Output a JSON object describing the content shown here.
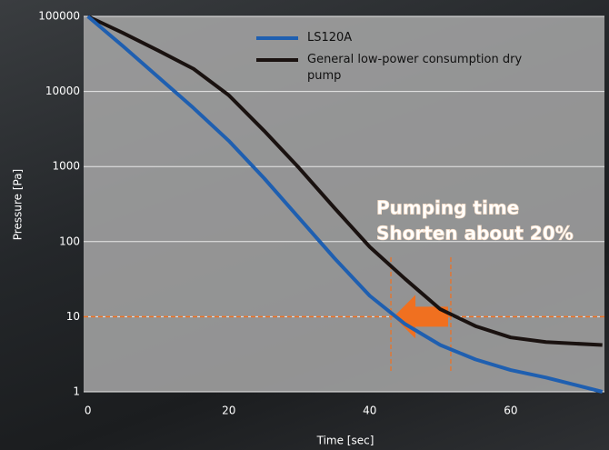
{
  "chart_data": {
    "type": "line",
    "x_label": "Time [sec]",
    "y_label": "Pressure [Pa]",
    "x": [
      0,
      5,
      10,
      15,
      20,
      25,
      30,
      35,
      40,
      45,
      50,
      55,
      60,
      65,
      73
    ],
    "series": [
      {
        "name": "LS120A",
        "color": "#1f5fb0",
        "values": [
          100000,
          40000,
          15500,
          6000,
          2200,
          700,
          205,
          60,
          19,
          8,
          4.2,
          2.7,
          1.95,
          1.55,
          1
        ]
      },
      {
        "name": "General low-power consumption dry pump",
        "color": "#1a1210",
        "values": [
          100000,
          60000,
          35000,
          20000,
          8900,
          3000,
          950,
          280,
          85,
          32,
          12.6,
          7.5,
          5.3,
          4.6,
          4.2
        ]
      }
    ],
    "xlim": [
      -0.6,
      73.3
    ],
    "xticks": [
      0,
      20,
      40,
      60
    ],
    "ylim": [
      1,
      100000
    ],
    "yticks": [
      1,
      10,
      100,
      1000,
      10000,
      100000
    ],
    "log_y": true,
    "grid": true,
    "annotation": [
      "Pumping time",
      "Shorten about 20%"
    ],
    "hline": 10,
    "vlines": [
      43,
      51.5
    ]
  }
}
